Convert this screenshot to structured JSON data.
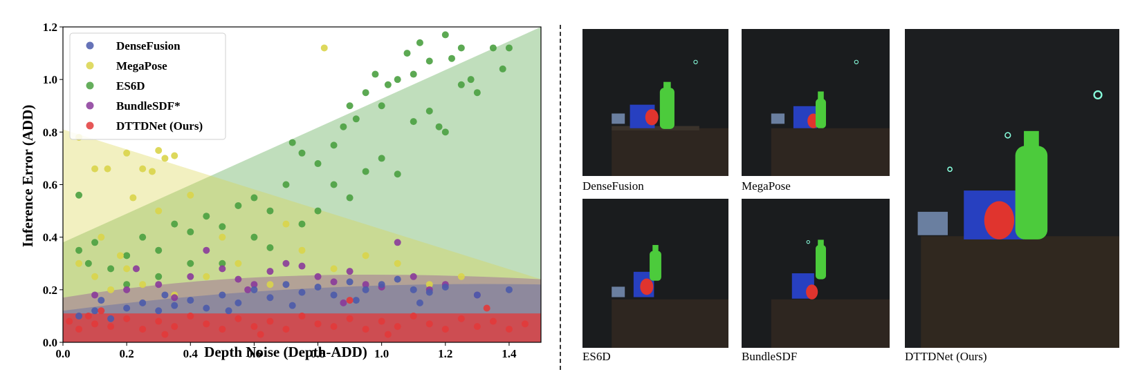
{
  "chart_data": {
    "type": "scatter",
    "xlabel": "Depth Noise (Depth-ADD)",
    "ylabel": "Inference Error (ADD)",
    "xlim": [
      0.0,
      1.5
    ],
    "ylim": [
      0.0,
      1.2
    ],
    "xticks": [
      "0.0",
      "0.2",
      "0.4",
      "0.6",
      "0.8",
      "1.0",
      "1.2",
      "1.4"
    ],
    "yticks": [
      "0.0",
      "0.2",
      "0.4",
      "0.6",
      "0.8",
      "1.0",
      "1.2"
    ],
    "grid": false,
    "legend_position": "top-left",
    "series": [
      {
        "name": "DenseFusion",
        "color": "#4b5bab",
        "points": [
          [
            0.05,
            0.1
          ],
          [
            0.1,
            0.12
          ],
          [
            0.15,
            0.09
          ],
          [
            0.2,
            0.13
          ],
          [
            0.25,
            0.15
          ],
          [
            0.3,
            0.12
          ],
          [
            0.35,
            0.14
          ],
          [
            0.4,
            0.16
          ],
          [
            0.45,
            0.13
          ],
          [
            0.5,
            0.18
          ],
          [
            0.55,
            0.15
          ],
          [
            0.6,
            0.2
          ],
          [
            0.65,
            0.17
          ],
          [
            0.7,
            0.22
          ],
          [
            0.75,
            0.19
          ],
          [
            0.8,
            0.21
          ],
          [
            0.85,
            0.18
          ],
          [
            0.9,
            0.23
          ],
          [
            0.95,
            0.2
          ],
          [
            1.0,
            0.22
          ],
          [
            1.05,
            0.24
          ],
          [
            1.1,
            0.2
          ],
          [
            1.15,
            0.19
          ],
          [
            1.2,
            0.21
          ],
          [
            1.3,
            0.18
          ],
          [
            1.4,
            0.2
          ],
          [
            0.12,
            0.16
          ],
          [
            0.32,
            0.18
          ],
          [
            0.52,
            0.12
          ],
          [
            0.72,
            0.14
          ],
          [
            0.92,
            0.16
          ],
          [
            1.12,
            0.15
          ]
        ],
        "band_lower": [
          0.0,
          0.0
        ],
        "band_upper_start": 0.12,
        "band_upper_end": 0.22
      },
      {
        "name": "MegaPose",
        "color": "#d9d44a",
        "points": [
          [
            0.05,
            0.78
          ],
          [
            0.1,
            0.66
          ],
          [
            0.14,
            0.66
          ],
          [
            0.2,
            0.72
          ],
          [
            0.25,
            0.66
          ],
          [
            0.28,
            0.65
          ],
          [
            0.3,
            0.73
          ],
          [
            0.32,
            0.7
          ],
          [
            0.35,
            0.71
          ],
          [
            0.4,
            0.56
          ],
          [
            0.22,
            0.55
          ],
          [
            0.3,
            0.5
          ],
          [
            0.82,
            1.12
          ],
          [
            0.05,
            0.3
          ],
          [
            0.1,
            0.25
          ],
          [
            0.15,
            0.2
          ],
          [
            0.2,
            0.28
          ],
          [
            0.25,
            0.22
          ],
          [
            0.35,
            0.18
          ],
          [
            0.45,
            0.25
          ],
          [
            0.55,
            0.3
          ],
          [
            0.65,
            0.22
          ],
          [
            0.75,
            0.35
          ],
          [
            0.85,
            0.28
          ],
          [
            0.95,
            0.33
          ],
          [
            1.05,
            0.3
          ],
          [
            1.15,
            0.22
          ],
          [
            1.25,
            0.25
          ],
          [
            0.12,
            0.4
          ],
          [
            0.18,
            0.33
          ],
          [
            0.5,
            0.4
          ],
          [
            0.7,
            0.45
          ]
        ],
        "band_lower": [
          0.0,
          0.0
        ],
        "band_upper_start": 0.81,
        "band_upper_end": 0.24
      },
      {
        "name": "ES6D",
        "color": "#4aa040",
        "points": [
          [
            0.05,
            0.56
          ],
          [
            0.05,
            0.35
          ],
          [
            0.08,
            0.3
          ],
          [
            0.1,
            0.38
          ],
          [
            0.15,
            0.28
          ],
          [
            0.2,
            0.33
          ],
          [
            0.25,
            0.4
          ],
          [
            0.3,
            0.35
          ],
          [
            0.35,
            0.45
          ],
          [
            0.4,
            0.42
          ],
          [
            0.45,
            0.48
          ],
          [
            0.5,
            0.44
          ],
          [
            0.55,
            0.52
          ],
          [
            0.6,
            0.55
          ],
          [
            0.65,
            0.5
          ],
          [
            0.7,
            0.6
          ],
          [
            0.72,
            0.76
          ],
          [
            0.75,
            0.72
          ],
          [
            0.8,
            0.68
          ],
          [
            0.85,
            0.75
          ],
          [
            0.88,
            0.82
          ],
          [
            0.9,
            0.9
          ],
          [
            0.92,
            0.85
          ],
          [
            0.95,
            0.95
          ],
          [
            0.98,
            1.02
          ],
          [
            1.0,
            0.9
          ],
          [
            1.02,
            0.98
          ],
          [
            1.05,
            1.0
          ],
          [
            1.08,
            1.1
          ],
          [
            1.1,
            1.02
          ],
          [
            1.12,
            1.14
          ],
          [
            1.15,
            1.07
          ],
          [
            1.2,
            1.17
          ],
          [
            1.22,
            1.08
          ],
          [
            1.25,
            1.12
          ],
          [
            1.28,
            1.0
          ],
          [
            1.3,
            0.95
          ],
          [
            1.35,
            1.12
          ],
          [
            1.38,
            1.04
          ],
          [
            1.4,
            1.12
          ],
          [
            1.18,
            0.82
          ],
          [
            1.2,
            0.8
          ],
          [
            1.25,
            0.98
          ],
          [
            1.05,
            0.64
          ],
          [
            0.6,
            0.4
          ],
          [
            0.65,
            0.36
          ],
          [
            0.4,
            0.3
          ],
          [
            0.3,
            0.25
          ],
          [
            0.2,
            0.22
          ],
          [
            0.5,
            0.3
          ],
          [
            0.8,
            0.5
          ],
          [
            0.9,
            0.55
          ],
          [
            1.0,
            0.7
          ],
          [
            1.1,
            0.84
          ],
          [
            1.15,
            0.88
          ],
          [
            0.75,
            0.45
          ],
          [
            0.85,
            0.6
          ],
          [
            0.95,
            0.65
          ]
        ],
        "band_lower": [
          0.0,
          0.0
        ],
        "band_upper_start": 0.38,
        "band_upper_end": 1.2
      },
      {
        "name": "BundleSDF*",
        "color": "#8a3a9a",
        "points": [
          [
            0.1,
            0.18
          ],
          [
            0.2,
            0.2
          ],
          [
            0.23,
            0.28
          ],
          [
            0.3,
            0.22
          ],
          [
            0.4,
            0.25
          ],
          [
            0.45,
            0.35
          ],
          [
            0.5,
            0.28
          ],
          [
            0.55,
            0.24
          ],
          [
            0.6,
            0.22
          ],
          [
            0.65,
            0.27
          ],
          [
            0.7,
            0.3
          ],
          [
            0.75,
            0.29
          ],
          [
            0.8,
            0.25
          ],
          [
            0.85,
            0.23
          ],
          [
            0.9,
            0.27
          ],
          [
            0.95,
            0.22
          ],
          [
            1.0,
            0.21
          ],
          [
            1.05,
            0.38
          ],
          [
            1.1,
            0.25
          ],
          [
            1.15,
            0.2
          ],
          [
            1.2,
            0.22
          ],
          [
            1.3,
            0.18
          ],
          [
            0.35,
            0.17
          ],
          [
            0.58,
            0.2
          ],
          [
            0.88,
            0.15
          ]
        ],
        "band_lower": [
          0.0,
          0.0
        ],
        "band_upper_start": 0.17,
        "band_upper_end": 0.24
      },
      {
        "name": "DTTDNet (Ours)",
        "color": "#e23a3a",
        "points": [
          [
            0.02,
            0.08
          ],
          [
            0.05,
            0.05
          ],
          [
            0.08,
            0.1
          ],
          [
            0.1,
            0.07
          ],
          [
            0.15,
            0.06
          ],
          [
            0.2,
            0.09
          ],
          [
            0.25,
            0.05
          ],
          [
            0.3,
            0.08
          ],
          [
            0.35,
            0.06
          ],
          [
            0.4,
            0.1
          ],
          [
            0.45,
            0.07
          ],
          [
            0.5,
            0.05
          ],
          [
            0.55,
            0.09
          ],
          [
            0.6,
            0.06
          ],
          [
            0.65,
            0.08
          ],
          [
            0.7,
            0.05
          ],
          [
            0.75,
            0.1
          ],
          [
            0.8,
            0.07
          ],
          [
            0.85,
            0.06
          ],
          [
            0.9,
            0.09
          ],
          [
            0.95,
            0.05
          ],
          [
            1.0,
            0.08
          ],
          [
            1.05,
            0.06
          ],
          [
            1.1,
            0.1
          ],
          [
            1.15,
            0.07
          ],
          [
            1.2,
            0.05
          ],
          [
            1.25,
            0.09
          ],
          [
            1.3,
            0.06
          ],
          [
            1.33,
            0.13
          ],
          [
            1.35,
            0.08
          ],
          [
            1.4,
            0.05
          ],
          [
            1.45,
            0.07
          ],
          [
            0.9,
            0.16
          ],
          [
            0.12,
            0.12
          ],
          [
            0.32,
            0.03
          ],
          [
            0.62,
            0.03
          ],
          [
            1.02,
            0.03
          ]
        ],
        "band_lower": [
          0.0,
          0.0
        ],
        "band_upper_start": 0.11,
        "band_upper_end": 0.11
      }
    ]
  },
  "panels": [
    {
      "caption": "DenseFusion"
    },
    {
      "caption": "MegaPose"
    },
    {
      "caption": "ES6D"
    },
    {
      "caption": "BundleSDF"
    },
    {
      "caption": "DTTDNet (Ours)"
    }
  ]
}
